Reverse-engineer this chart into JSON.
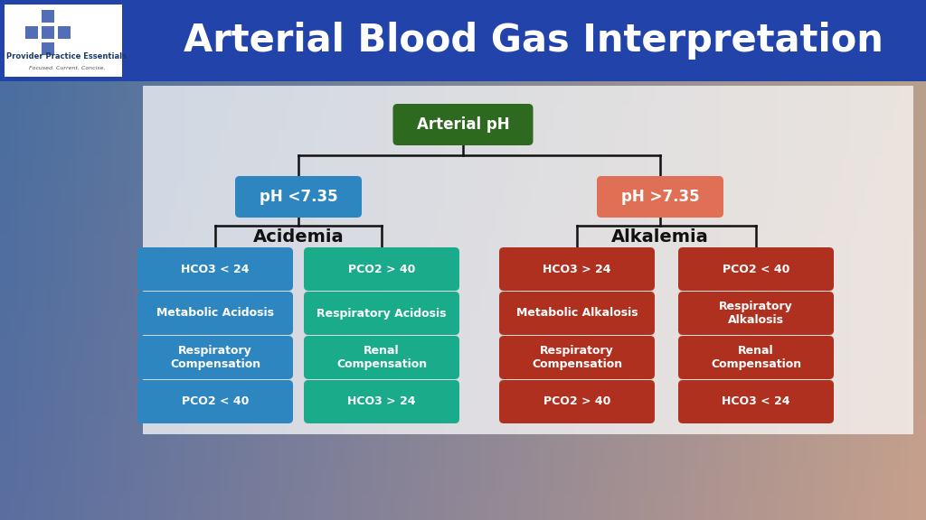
{
  "title": "Arterial Blood Gas Interpretation",
  "title_color": "#ffffff",
  "title_bg": "#2244aa",
  "title_fontsize": 30,
  "logo_text_line1": "Provider Practice Essentials",
  "logo_text_line2": "Focused. Current. Concise.",
  "root_label": "Arterial pH",
  "root_color": "#2d6a20",
  "root_text_color": "#ffffff",
  "left_node_label": "pH <7.35",
  "left_node_color": "#2e86c1",
  "left_node_text_color": "#ffffff",
  "right_node_label": "pH >7.35",
  "right_node_color": "#e07055",
  "right_node_text_color": "#ffffff",
  "left_section_label": "Acidemia",
  "right_section_label": "Alkalemia",
  "col1_color": "#2e86c1",
  "col2_color": "#1aab8a",
  "col3_color": "#b03020",
  "col4_color": "#b03020",
  "col1_items": [
    "HCO3 < 24",
    "Metabolic Acidosis",
    "Respiratory\nCompensation",
    "PCO2 < 40"
  ],
  "col2_items": [
    "PCO2 > 40",
    "Respiratory Acidosis",
    "Renal\nCompensation",
    "HCO3 > 24"
  ],
  "col3_items": [
    "HCO3 > 24",
    "Metabolic Alkalosis",
    "Respiratory\nCompensation",
    "PCO2 > 40"
  ],
  "col4_items": [
    "PCO2 < 40",
    "Respiratory\nAlkalosis",
    "Renal\nCompensation",
    "HCO3 < 24"
  ],
  "box_text_color": "#ffffff",
  "line_color": "#111111",
  "line_width": 1.8,
  "bg_left_color": "#6a9cc8",
  "bg_right_color": "#c8b8a8",
  "panel_color": "#dde8f0",
  "panel_alpha": 0.72
}
